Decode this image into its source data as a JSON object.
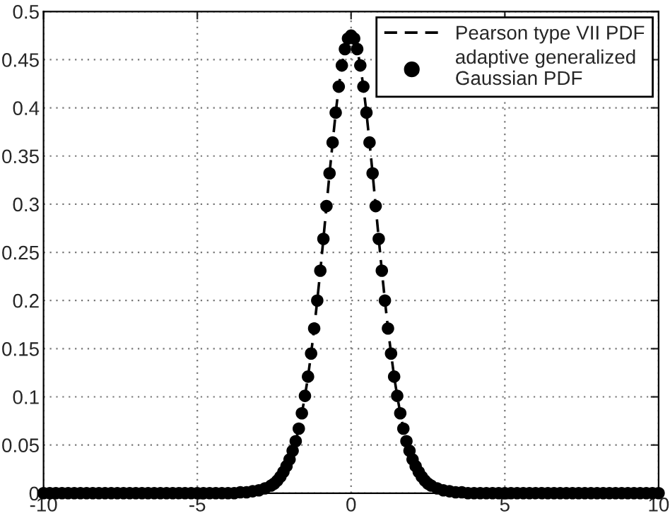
{
  "chart_data": {
    "type": "line",
    "x": [
      -10,
      -9.8,
      -9.6,
      -9.4,
      -9.2,
      -9,
      -8.8,
      -8.6,
      -8.4,
      -8.2,
      -8,
      -7.8,
      -7.6,
      -7.4,
      -7.2,
      -7,
      -6.8,
      -6.6,
      -6.4,
      -6.2,
      -6,
      -5.8,
      -5.6,
      -5.4,
      -5.2,
      -5,
      -4.8,
      -4.6,
      -4.4,
      -4.2,
      -4,
      -3.8,
      -3.6,
      -3.4,
      -3.2,
      -3,
      -2.9,
      -2.8,
      -2.7,
      -2.6,
      -2.5,
      -2.4,
      -2.3,
      -2.2,
      -2.1,
      -2,
      -1.9,
      -1.8,
      -1.7,
      -1.6,
      -1.5,
      -1.4,
      -1.3,
      -1.2,
      -1.1,
      -1,
      -0.9,
      -0.8,
      -0.7,
      -0.6,
      -0.5,
      -0.4,
      -0.3,
      -0.2,
      -0.1,
      0,
      0.1,
      0.2,
      0.3,
      0.4,
      0.5,
      0.6,
      0.7,
      0.8,
      0.9,
      1,
      1.1,
      1.2,
      1.3,
      1.4,
      1.5,
      1.6,
      1.7,
      1.8,
      1.9,
      2,
      2.1,
      2.2,
      2.3,
      2.4,
      2.5,
      2.6,
      2.7,
      2.8,
      2.9,
      3,
      3.2,
      3.4,
      3.6,
      3.8,
      4,
      4.2,
      4.4,
      4.6,
      4.8,
      5,
      5.2,
      5.4,
      5.6,
      5.8,
      6,
      6.2,
      6.4,
      6.6,
      6.8,
      7,
      7.2,
      7.4,
      7.6,
      7.8,
      8,
      8.2,
      8.4,
      8.6,
      8.8,
      9,
      9.2,
      9.4,
      9.6,
      9.8,
      10
    ],
    "series": [
      {
        "name": "Pearson type VII PDF",
        "type": "line",
        "line_style": "dashed",
        "marker": "none",
        "color": "#000000",
        "values": [
          0,
          0,
          0,
          0,
          0,
          0,
          0,
          0,
          0,
          0,
          0,
          0,
          0,
          0,
          0,
          0,
          0,
          0,
          0,
          0,
          0,
          0,
          0,
          0,
          0,
          0,
          0,
          0,
          0,
          0,
          0,
          0,
          0.001,
          0.001,
          0.002,
          0.003,
          0.004,
          0.005,
          0.006,
          0.008,
          0.01,
          0.013,
          0.017,
          0.022,
          0.028,
          0.035,
          0.044,
          0.054,
          0.067,
          0.083,
          0.101,
          0.121,
          0.145,
          0.171,
          0.2,
          0.231,
          0.264,
          0.298,
          0.332,
          0.364,
          0.395,
          0.422,
          0.444,
          0.461,
          0.472,
          0.475,
          0.472,
          0.461,
          0.444,
          0.422,
          0.395,
          0.364,
          0.332,
          0.298,
          0.264,
          0.231,
          0.2,
          0.171,
          0.145,
          0.121,
          0.101,
          0.083,
          0.067,
          0.054,
          0.044,
          0.035,
          0.028,
          0.022,
          0.017,
          0.013,
          0.01,
          0.008,
          0.006,
          0.005,
          0.004,
          0.003,
          0.002,
          0.001,
          0.001,
          0,
          0,
          0,
          0,
          0,
          0,
          0,
          0,
          0,
          0,
          0,
          0,
          0,
          0,
          0,
          0,
          0,
          0,
          0,
          0,
          0,
          0,
          0,
          0,
          0,
          0,
          0,
          0,
          0,
          0,
          0,
          0
        ]
      },
      {
        "name": "adaptive generalized\nGaussian PDF",
        "type": "scatter",
        "marker": "circle",
        "color": "#000000",
        "x": [
          -10,
          -9.8,
          -9.6,
          -9.4,
          -9.2,
          -9,
          -8.8,
          -8.6,
          -8.4,
          -8.2,
          -8,
          -7.8,
          -7.6,
          -7.4,
          -7.2,
          -7,
          -6.8,
          -6.6,
          -6.4,
          -6.2,
          -6,
          -5.8,
          -5.6,
          -5.4,
          -5.2,
          -5,
          -4.8,
          -4.6,
          -4.4,
          -4.2,
          -4,
          -3.8,
          -3.6,
          -3.4,
          -3.2,
          -3,
          -2.8,
          -2.6,
          -2.5,
          -2.4,
          -2.3,
          -2.2,
          -2.1,
          -2,
          -1.9,
          -1.8,
          -1.7,
          -1.6,
          -1.5,
          -1.4,
          -1.3,
          -1.2,
          -1.1,
          -1,
          -0.9,
          -0.8,
          -0.7,
          -0.6,
          -0.5,
          -0.4,
          -0.3,
          -0.2,
          -0.1,
          0,
          0.1,
          0.2,
          0.3,
          0.4,
          0.5,
          0.6,
          0.7,
          0.8,
          0.9,
          1,
          1.1,
          1.2,
          1.3,
          1.4,
          1.5,
          1.6,
          1.7,
          1.8,
          1.9,
          2,
          2.1,
          2.2,
          2.3,
          2.4,
          2.5,
          2.6,
          2.8,
          3,
          3.2,
          3.4,
          3.6,
          3.8,
          4,
          4.2,
          4.4,
          4.6,
          4.8,
          5,
          5.2,
          5.4,
          5.6,
          5.8,
          6,
          6.2,
          6.4,
          6.6,
          6.8,
          7,
          7.2,
          7.4,
          7.6,
          7.8,
          8,
          8.2,
          8.4,
          8.6,
          8.8,
          9,
          9.2,
          9.4,
          9.6,
          9.8,
          10
        ],
        "values": [
          0,
          0,
          0,
          0,
          0,
          0,
          0,
          0,
          0,
          0,
          0,
          0,
          0,
          0,
          0,
          0,
          0,
          0,
          0,
          0,
          0,
          0,
          0,
          0,
          0,
          0,
          0,
          0,
          0,
          0,
          0,
          0,
          0.001,
          0.001,
          0.002,
          0.003,
          0.005,
          0.008,
          0.01,
          0.013,
          0.017,
          0.022,
          0.028,
          0.035,
          0.044,
          0.054,
          0.067,
          0.083,
          0.101,
          0.121,
          0.145,
          0.171,
          0.2,
          0.231,
          0.264,
          0.298,
          0.332,
          0.364,
          0.395,
          0.422,
          0.444,
          0.461,
          0.472,
          0.475,
          0.472,
          0.461,
          0.444,
          0.422,
          0.395,
          0.364,
          0.332,
          0.298,
          0.264,
          0.231,
          0.2,
          0.171,
          0.145,
          0.121,
          0.101,
          0.083,
          0.067,
          0.054,
          0.044,
          0.035,
          0.028,
          0.022,
          0.017,
          0.013,
          0.01,
          0.008,
          0.005,
          0.003,
          0.002,
          0.001,
          0.001,
          0,
          0,
          0,
          0,
          0,
          0,
          0,
          0,
          0,
          0,
          0,
          0,
          0,
          0,
          0,
          0,
          0,
          0,
          0,
          0,
          0,
          0,
          0,
          0,
          0,
          0,
          0,
          0,
          0,
          0,
          0,
          0
        ]
      }
    ],
    "xlim": [
      -10,
      10
    ],
    "xticks": [
      -10,
      -5,
      0,
      5,
      10
    ],
    "ylim": [
      0,
      0.5
    ],
    "yticks": [
      0,
      0.05,
      0.1,
      0.15,
      0.2,
      0.25,
      0.3,
      0.35,
      0.4,
      0.45,
      0.5
    ],
    "grid": true,
    "legend": "top right"
  }
}
